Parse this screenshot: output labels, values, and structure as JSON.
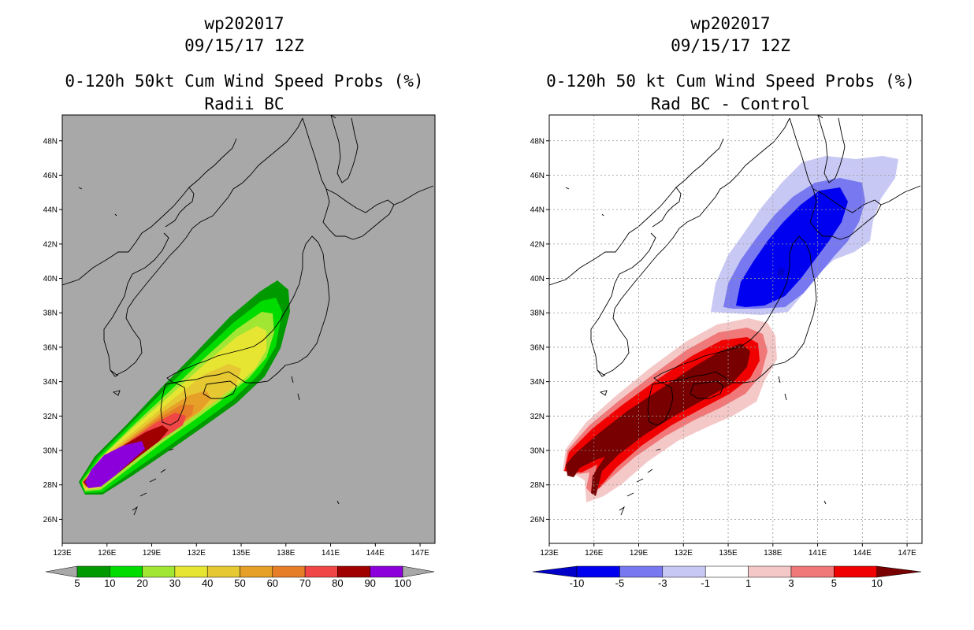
{
  "chart_data": [
    {
      "type": "heatmap",
      "id": "left",
      "title_line1": "wp202017",
      "title_line2": "09/15/17 12Z",
      "title_line3": "0-120h 50kt Cum Wind Speed Probs (%)",
      "title_line4": "Radii BC",
      "xlabel": "",
      "ylabel": "",
      "xlim": [
        123,
        148
      ],
      "ylim": [
        24.6,
        49.5
      ],
      "x_ticks": [
        "123E",
        "126E",
        "129E",
        "132E",
        "135E",
        "138E",
        "141E",
        "144E",
        "147E"
      ],
      "y_ticks": [
        "26N",
        "28N",
        "30N",
        "32N",
        "34N",
        "36N",
        "38N",
        "40N",
        "42N",
        "44N",
        "46N",
        "48N"
      ],
      "background": "#a8a8a8",
      "grid": false,
      "colorbar": {
        "labels": [
          "5",
          "10",
          "20",
          "30",
          "40",
          "50",
          "60",
          "70",
          "80",
          "90",
          "100"
        ],
        "colors": [
          "#009a00",
          "#00dc00",
          "#a0e632",
          "#e6e632",
          "#e6c832",
          "#e6a028",
          "#e67e28",
          "#f04646",
          "#a00000",
          "#8c00dc"
        ]
      },
      "contours": [
        {
          "level": 5,
          "color": "#009a00"
        },
        {
          "level": 10,
          "color": "#00dc00"
        },
        {
          "level": 20,
          "color": "#a0e632"
        },
        {
          "level": 30,
          "color": "#e6e632"
        },
        {
          "level": 40,
          "color": "#e6c832"
        },
        {
          "level": 50,
          "color": "#e6a028"
        },
        {
          "level": 60,
          "color": "#e67e28"
        },
        {
          "level": 70,
          "color": "#f04646"
        },
        {
          "level": 80,
          "color": "#a00000"
        },
        {
          "level": 90,
          "color": "#8c00dc"
        }
      ]
    },
    {
      "type": "heatmap",
      "id": "right",
      "title_line1": "wp202017",
      "title_line2": "09/15/17 12Z",
      "title_line3": "0-120h 50 kt Cum Wind Speed Probs (%)",
      "title_line4": "Rad BC - Control",
      "xlabel": "",
      "ylabel": "",
      "xlim": [
        123,
        148
      ],
      "ylim": [
        24.6,
        49.5
      ],
      "x_ticks": [
        "123E",
        "126E",
        "129E",
        "132E",
        "135E",
        "138E",
        "141E",
        "144E",
        "147E"
      ],
      "y_ticks": [
        "26N",
        "28N",
        "30N",
        "32N",
        "34N",
        "36N",
        "38N",
        "40N",
        "42N",
        "44N",
        "46N",
        "48N"
      ],
      "background": "#ffffff",
      "grid": true,
      "colorbar": {
        "labels": [
          "-10",
          "-5",
          "-3",
          "-1",
          "1",
          "3",
          "5",
          "10"
        ],
        "colors": [
          "#0000c8",
          "#0000f0",
          "#7878f0",
          "#c8c8f5",
          "#ffffff",
          "#f5c8c8",
          "#f07878",
          "#f00000",
          "#780000"
        ]
      },
      "contours": [
        {
          "level": -1,
          "color": "#c8c8f5"
        },
        {
          "level": -3,
          "color": "#7878f0"
        },
        {
          "level": -5,
          "color": "#0000f0"
        },
        {
          "level": 1,
          "color": "#f5c8c8"
        },
        {
          "level": 3,
          "color": "#f07878"
        },
        {
          "level": 5,
          "color": "#f00000"
        },
        {
          "level": 10,
          "color": "#780000"
        }
      ]
    }
  ]
}
